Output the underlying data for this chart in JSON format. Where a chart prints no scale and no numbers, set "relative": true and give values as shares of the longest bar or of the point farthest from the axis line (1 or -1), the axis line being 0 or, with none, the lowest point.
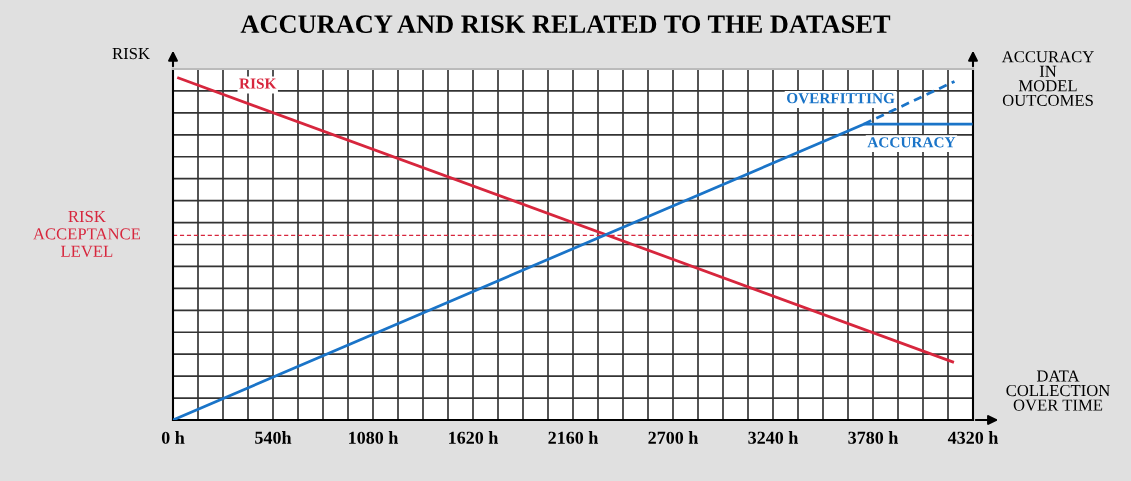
{
  "chart_data": {
    "type": "line",
    "title": "ACCURACY AND RISK RELATED TO THE DATASET",
    "ylabel": "RISK",
    "y2label": "ACCURACY\nIN\nMODEL\nOUTCOMES",
    "xlabel": "DATA\nCOLLECTION\nOVER TIME",
    "relative": true,
    "xlim": [
      0,
      4320
    ],
    "xticks": [
      {
        "value": 0,
        "label": "0 h"
      },
      {
        "value": 135,
        "label": null
      },
      {
        "value": 270,
        "label": null
      },
      {
        "value": 405,
        "label": null
      },
      {
        "value": 540,
        "label": "540h"
      },
      {
        "value": 675,
        "label": null
      },
      {
        "value": 810,
        "label": null
      },
      {
        "value": 945,
        "label": null
      },
      {
        "value": 1080,
        "label": "1080 h"
      },
      {
        "value": 1215,
        "label": null
      },
      {
        "value": 1350,
        "label": null
      },
      {
        "value": 1485,
        "label": null
      },
      {
        "value": 1620,
        "label": "1620 h"
      },
      {
        "value": 1755,
        "label": null
      },
      {
        "value": 1890,
        "label": null
      },
      {
        "value": 2025,
        "label": null
      },
      {
        "value": 2160,
        "label": "2160 h"
      },
      {
        "value": 2295,
        "label": null
      },
      {
        "value": 2430,
        "label": null
      },
      {
        "value": 2565,
        "label": null
      },
      {
        "value": 2700,
        "label": "2700 h"
      },
      {
        "value": 2835,
        "label": null
      },
      {
        "value": 2970,
        "label": null
      },
      {
        "value": 3105,
        "label": null
      },
      {
        "value": 3240,
        "label": "3240 h"
      },
      {
        "value": 3375,
        "label": null
      },
      {
        "value": 3510,
        "label": null
      },
      {
        "value": 3645,
        "label": null
      },
      {
        "value": 3780,
        "label": "3780 h"
      },
      {
        "value": 3915,
        "label": null
      },
      {
        "value": 4050,
        "label": null
      },
      {
        "value": 4185,
        "label": null
      },
      {
        "value": 4320,
        "label": "4320 h"
      }
    ],
    "grid": true,
    "series": [
      {
        "name": "RISK",
        "color": "#d7263d",
        "x": [
          30,
          4210
        ],
        "values": [
          1,
          0.17
        ]
      },
      {
        "name": "ACCURACY",
        "color": "#1a74c8",
        "x": [
          0,
          3730,
          4310
        ],
        "values": [
          0,
          0.865,
          0.865
        ]
      },
      {
        "name": "OVERFITTING",
        "color": "#1a74c8",
        "x": [
          3730,
          4220
        ],
        "values": [
          0.865,
          0.99
        ],
        "line_style": "dashed"
      }
    ],
    "ref_lines": [
      {
        "axis": "y",
        "value": 0.54,
        "label": "RISK\nACCEPTANCE\nLEVEL",
        "color": "#d7263d",
        "line_style": "dashed"
      }
    ]
  }
}
